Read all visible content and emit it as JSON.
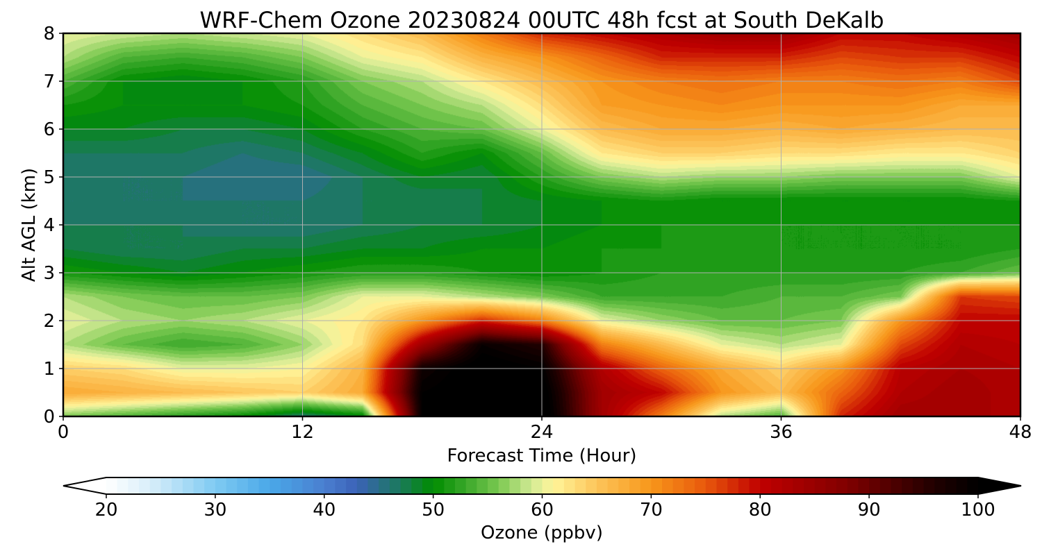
{
  "chart_data": {
    "type": "heatmap",
    "title": "WRF-Chem Ozone  20230824 00UTC 48h fcst at South DeKalb",
    "xlabel": "Forecast Time (Hour)",
    "ylabel": "Alt AGL (km)",
    "xlim": [
      0,
      48
    ],
    "ylim": [
      0,
      8
    ],
    "x_ticks": [
      0,
      12,
      24,
      36,
      48
    ],
    "y_ticks": [
      0,
      1,
      2,
      3,
      4,
      5,
      6,
      7,
      8
    ],
    "grid": true,
    "x": [
      0,
      3,
      6,
      9,
      12,
      15,
      18,
      21,
      24,
      27,
      30,
      33,
      36,
      39,
      42,
      45,
      48
    ],
    "y": [
      0,
      0.5,
      1,
      1.5,
      2,
      2.5,
      3,
      3.5,
      4,
      4.5,
      5,
      5.5,
      6,
      6.5,
      7,
      7.5,
      8
    ],
    "z": [
      [
        56,
        54,
        52,
        50,
        46,
        49,
        100,
        102,
        103,
        84,
        72,
        58,
        54,
        78,
        84,
        84,
        82
      ],
      [
        68,
        67,
        66,
        65,
        64,
        68,
        100,
        102,
        102,
        84,
        80,
        70,
        66,
        74,
        82,
        84,
        82
      ],
      [
        64,
        63,
        60,
        60,
        61,
        67,
        98,
        102,
        100,
        82,
        74,
        68,
        64,
        70,
        81,
        83,
        82
      ],
      [
        58,
        55,
        53,
        54,
        57,
        63,
        84,
        99,
        96,
        72,
        66,
        60,
        58,
        60,
        76,
        82,
        81
      ],
      [
        60,
        58,
        57,
        58,
        60,
        62,
        70,
        78,
        72,
        60,
        57,
        55,
        55,
        56,
        70,
        80,
        80
      ],
      [
        58,
        56,
        55,
        55,
        56,
        60,
        60,
        58,
        56,
        53,
        53,
        53,
        54,
        54,
        56,
        77,
        76
      ],
      [
        51,
        50,
        49,
        50,
        51,
        52,
        52,
        51,
        50,
        51,
        52,
        52,
        52,
        52,
        52,
        53,
        55
      ],
      [
        48,
        47,
        47,
        48,
        48,
        49,
        49,
        50,
        50,
        51,
        51,
        52,
        51,
        51,
        51,
        51,
        52
      ],
      [
        47,
        47,
        47,
        46,
        46,
        47,
        48,
        48,
        49,
        50,
        51,
        51,
        51,
        51,
        51,
        51,
        51
      ],
      [
        46,
        46,
        46,
        46,
        46,
        47,
        47,
        48,
        49,
        50,
        51,
        50,
        50,
        50,
        50,
        50,
        51
      ],
      [
        47,
        46,
        46,
        45,
        45,
        47,
        49,
        48,
        52,
        56,
        58,
        57,
        57,
        56,
        56,
        56,
        60
      ],
      [
        47,
        47,
        47,
        46,
        47,
        49,
        52,
        50,
        55,
        62,
        64,
        64,
        63,
        63,
        62,
        62,
        64
      ],
      [
        49,
        49,
        48,
        48,
        49,
        52,
        54,
        55,
        60,
        66,
        68,
        68,
        67,
        68,
        67,
        66,
        66
      ],
      [
        51,
        50,
        50,
        50,
        51,
        54,
        56,
        58,
        63,
        69,
        70,
        71,
        70,
        70,
        70,
        68,
        68
      ],
      [
        54,
        50,
        49,
        50,
        52,
        56,
        58,
        62,
        66,
        70,
        72,
        73,
        72,
        72,
        73,
        72,
        76
      ],
      [
        58,
        54,
        53,
        54,
        56,
        60,
        62,
        67,
        70,
        74,
        78,
        78,
        78,
        76,
        77,
        77,
        80
      ],
      [
        60,
        59,
        58,
        59,
        60,
        63,
        66,
        72,
        78,
        80,
        82,
        84,
        84,
        80,
        80,
        82,
        84
      ]
    ],
    "colorbar": {
      "label": "Ozone  (ppbv)",
      "min": 20,
      "max": 100,
      "ticks": [
        20,
        30,
        40,
        50,
        60,
        70,
        80,
        90,
        100
      ],
      "extend": "both",
      "levels": 80,
      "stops": [
        {
          "v": 20,
          "c": "#ffffff"
        },
        {
          "v": 24,
          "c": "#d8eefa"
        },
        {
          "v": 30,
          "c": "#7fcaf2"
        },
        {
          "v": 35,
          "c": "#4aa8e8"
        },
        {
          "v": 40,
          "c": "#4a7fd0"
        },
        {
          "v": 43,
          "c": "#3b62b8"
        },
        {
          "v": 47,
          "c": "#1a7a5a"
        },
        {
          "v": 50,
          "c": "#008c00"
        },
        {
          "v": 53,
          "c": "#3aa82a"
        },
        {
          "v": 56,
          "c": "#7ac850"
        },
        {
          "v": 59,
          "c": "#d2ea94"
        },
        {
          "v": 61,
          "c": "#fff59a"
        },
        {
          "v": 65,
          "c": "#fdc55a"
        },
        {
          "v": 70,
          "c": "#f7961a"
        },
        {
          "v": 75,
          "c": "#e8580c"
        },
        {
          "v": 80,
          "c": "#c00000"
        },
        {
          "v": 88,
          "c": "#800000"
        },
        {
          "v": 96,
          "c": "#200000"
        },
        {
          "v": 100,
          "c": "#000000"
        }
      ]
    }
  }
}
